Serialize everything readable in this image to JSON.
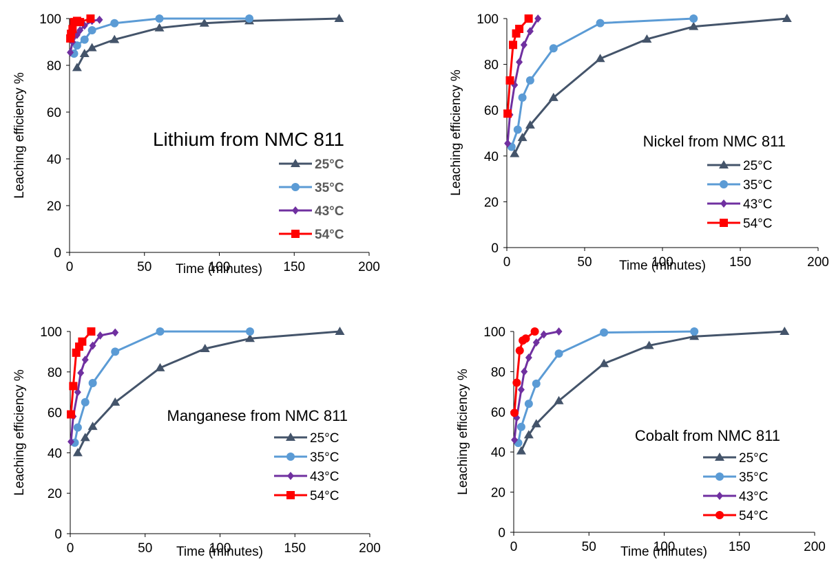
{
  "colors": {
    "25C": "#44546A",
    "35C": "#5B9BD5",
    "43C": "#7030A0",
    "54C": "#FF0000"
  },
  "chart_data": [
    {
      "type": "line",
      "title": "Lithium from NMC 811",
      "xlabel": "Time (minutes)",
      "ylabel": "Leaching efficiency %",
      "xlim": [
        0,
        200
      ],
      "ylim": [
        0,
        100
      ],
      "xticks": [
        "0",
        "50",
        "100",
        "150",
        "200"
      ],
      "yticks": [
        "0",
        "20",
        "40",
        "60",
        "80",
        "100"
      ],
      "grid": false,
      "legend": "bottom-right",
      "legend_bold": true,
      "series": [
        {
          "name": "25°C",
          "color_key": "25C",
          "marker": "triangle",
          "x": [
            5,
            10,
            15,
            30,
            60,
            90,
            120,
            180
          ],
          "y": [
            79,
            85,
            87.5,
            91,
            96,
            98,
            99,
            100
          ]
        },
        {
          "name": "35°C",
          "color_key": "35C",
          "marker": "circle",
          "x": [
            3,
            5,
            10,
            15,
            30,
            60,
            120
          ],
          "y": [
            85,
            88.5,
            91,
            95,
            98,
            100,
            100
          ]
        },
        {
          "name": "43°C",
          "color_key": "43C",
          "marker": "diamond",
          "x": [
            0.5,
            2,
            5,
            7,
            10,
            15,
            20
          ],
          "y": [
            85.5,
            90,
            93,
            95,
            97,
            99,
            99.5
          ]
        },
        {
          "name": "54°C",
          "color_key": "54C",
          "marker": "square",
          "x": [
            0.5,
            1,
            2,
            3,
            5,
            7,
            14
          ],
          "y": [
            91.5,
            93.5,
            95.5,
            98.5,
            99,
            98.5,
            100
          ]
        }
      ]
    },
    {
      "type": "line",
      "title": "Nickel from NMC 811",
      "xlabel": "Time (minutes)",
      "ylabel": "Leaching efficiency %",
      "xlim": [
        0,
        200
      ],
      "ylim": [
        0,
        100
      ],
      "xticks": [
        "0",
        "50",
        "100",
        "150",
        "200"
      ],
      "yticks": [
        "0",
        "20",
        "40",
        "60",
        "80",
        "100"
      ],
      "grid": false,
      "legend": "bottom-right",
      "legend_bold": false,
      "series": [
        {
          "name": "25°C",
          "color_key": "25C",
          "marker": "triangle",
          "x": [
            5,
            10,
            15,
            30,
            60,
            90,
            120,
            180
          ],
          "y": [
            41,
            48,
            53.5,
            65.5,
            82.5,
            91,
            96.5,
            100
          ]
        },
        {
          "name": "35°C",
          "color_key": "35C",
          "marker": "circle",
          "x": [
            3,
            7,
            10,
            15,
            30,
            60,
            120
          ],
          "y": [
            44,
            51.5,
            65.5,
            73,
            87,
            98,
            100
          ]
        },
        {
          "name": "43°C",
          "color_key": "43C",
          "marker": "diamond",
          "x": [
            0.5,
            2,
            5,
            8,
            11,
            15,
            20
          ],
          "y": [
            45.5,
            58,
            71,
            81,
            88.5,
            94.5,
            100
          ]
        },
        {
          "name": "54°C",
          "color_key": "54C",
          "marker": "square",
          "x": [
            0.5,
            2,
            4,
            6,
            8,
            14
          ],
          "y": [
            58.5,
            73,
            88.5,
            93.5,
            95.5,
            100
          ]
        }
      ]
    },
    {
      "type": "line",
      "title": "Manganese from NMC 811",
      "xlabel": "Time (minutes)",
      "ylabel": "Leaching efficiency %",
      "xlim": [
        0,
        200
      ],
      "ylim": [
        0,
        100
      ],
      "xticks": [
        "0",
        "50",
        "100",
        "150",
        "200"
      ],
      "yticks": [
        "0",
        "20",
        "40",
        "60",
        "80",
        "100"
      ],
      "grid": false,
      "legend": "bottom-right",
      "legend_bold": false,
      "series": [
        {
          "name": "25°C",
          "color_key": "25C",
          "marker": "triangle",
          "x": [
            5,
            10,
            15,
            30,
            60,
            90,
            120,
            180
          ],
          "y": [
            40,
            47.5,
            53,
            65,
            82,
            91.5,
            96.5,
            100
          ]
        },
        {
          "name": "35°C",
          "color_key": "35C",
          "marker": "circle",
          "x": [
            3,
            5,
            10,
            15,
            30,
            60,
            120
          ],
          "y": [
            45,
            52.5,
            65,
            74.5,
            90,
            100,
            100
          ]
        },
        {
          "name": "43°C",
          "color_key": "43C",
          "marker": "diamond",
          "x": [
            0.5,
            2,
            5,
            7,
            10,
            15,
            20,
            30
          ],
          "y": [
            45.5,
            58,
            70,
            79.5,
            86,
            93,
            98,
            99.5
          ]
        },
        {
          "name": "54°C",
          "color_key": "54C",
          "marker": "square",
          "x": [
            0.5,
            2,
            4,
            6,
            8,
            14
          ],
          "y": [
            59,
            73,
            89.5,
            92.5,
            95,
            100
          ]
        }
      ]
    },
    {
      "type": "line",
      "title": "Cobalt from NMC 811",
      "xlabel": "Time (minutes)",
      "ylabel": "Leaching efficiency %",
      "xlim": [
        0,
        200
      ],
      "ylim": [
        0,
        100
      ],
      "xticks": [
        "0",
        "50",
        "100",
        "150",
        "200"
      ],
      "yticks": [
        "0",
        "20",
        "40",
        "60",
        "80",
        "100"
      ],
      "grid": false,
      "legend": "bottom-right",
      "legend_bold": false,
      "series": [
        {
          "name": "25°C",
          "color_key": "25C",
          "marker": "triangle",
          "x": [
            5,
            10,
            15,
            30,
            60,
            90,
            120,
            180
          ],
          "y": [
            40.5,
            48.5,
            54,
            65.5,
            84,
            93,
            97.5,
            100
          ]
        },
        {
          "name": "35°C",
          "color_key": "35C",
          "marker": "circle",
          "x": [
            3,
            5,
            10,
            15,
            30,
            60,
            120
          ],
          "y": [
            44.5,
            52.5,
            64,
            74,
            89,
            99.5,
            100
          ]
        },
        {
          "name": "43°C",
          "color_key": "43C",
          "marker": "diamond",
          "x": [
            0.5,
            2,
            5,
            7,
            10,
            15,
            20,
            30
          ],
          "y": [
            46,
            57,
            71,
            80,
            87,
            94.5,
            98.5,
            100
          ]
        },
        {
          "name": "54°C",
          "color_key": "54C",
          "marker": "circle",
          "x": [
            0.5,
            2,
            4,
            6,
            8,
            14
          ],
          "y": [
            59.5,
            74.5,
            90.5,
            95.5,
            96.5,
            100
          ]
        }
      ]
    }
  ]
}
